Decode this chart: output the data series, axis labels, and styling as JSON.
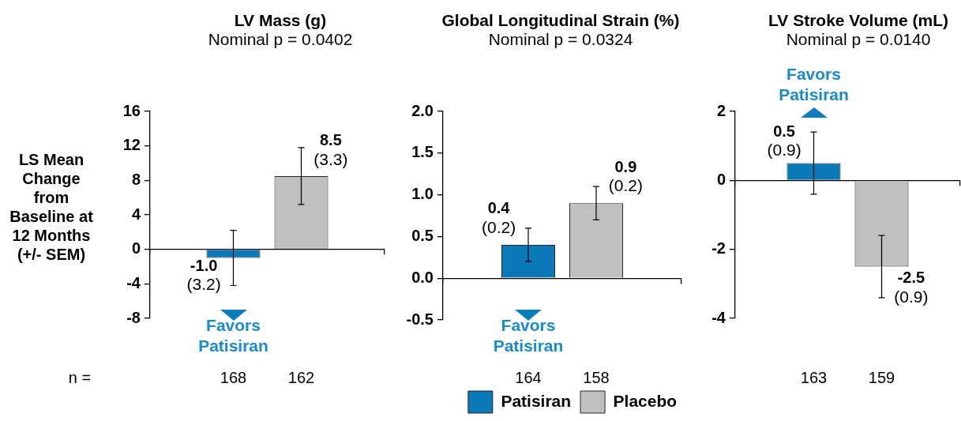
{
  "chart_data": [
    {
      "type": "bar",
      "title": "LV Mass (g)",
      "subtitle": "Nominal p = 0.0402",
      "ylabel": "LS Mean Change from Baseline at 12 Months (+/- SEM)",
      "categories": [
        null
      ],
      "series": [
        {
          "color": "#0b78b8",
          "values": [
            -1.0
          ],
          "errors": [
            3.2
          ],
          "value_labels": [
            "-1.0\n(3.2)"
          ]
        },
        {
          "color": "#bfbfbf",
          "values": [
            8.5
          ],
          "errors": [
            3.3
          ],
          "value_labels": [
            "8.5\n(3.3)"
          ]
        }
      ],
      "ylim": [
        -8,
        16
      ],
      "yticks": [
        -8,
        -4,
        0,
        4,
        8,
        12,
        16
      ],
      "annotations": [
        "Favors Patisiran",
        "n =",
        "168",
        "162"
      ]
    },
    {
      "type": "bar",
      "title": "Global Longitudinal Strain (%)",
      "subtitle": "Nominal p = 0.0324",
      "categories": [
        null
      ],
      "series": [
        {
          "name": "Patisiran",
          "color": "#0b78b8",
          "values": [
            0.4
          ],
          "errors": [
            0.2
          ],
          "value_labels": [
            "0.4\n(0.2)"
          ]
        },
        {
          "name": "Placebo",
          "color": "#bfbfbf",
          "values": [
            0.9
          ],
          "errors": [
            0.2
          ],
          "value_labels": [
            "0.9\n(0.2)"
          ]
        }
      ],
      "ylim": [
        -0.5,
        2.0
      ],
      "yticks": [
        -0.5,
        {
          "value": 0,
          "label": "0.0"
        },
        0.5,
        {
          "value": 1,
          "label": "1.0"
        },
        1.5,
        {
          "value": 2,
          "label": "2.0"
        }
      ],
      "legend": "bottom",
      "annotations": [
        "Favors Patisiran",
        "164",
        "158"
      ]
    },
    {
      "type": "bar",
      "title": "LV Stroke Volume (mL)",
      "subtitle": "Nominal p = 0.0140",
      "categories": [
        null
      ],
      "series": [
        {
          "color": "#0b78b8",
          "values": [
            0.5
          ],
          "errors": [
            0.9
          ],
          "value_labels": [
            "0.5\n(0.9)"
          ]
        },
        {
          "color": "#bfbfbf",
          "values": [
            -2.5
          ],
          "errors": [
            0.9
          ],
          "value_labels": [
            "-2.5\n(0.9)"
          ]
        }
      ],
      "ylim": [
        -4,
        2
      ],
      "yticks": [
        -4,
        -2,
        0,
        2
      ],
      "annotations": [
        "Favors Patisiran",
        "163",
        "159"
      ]
    }
  ]
}
